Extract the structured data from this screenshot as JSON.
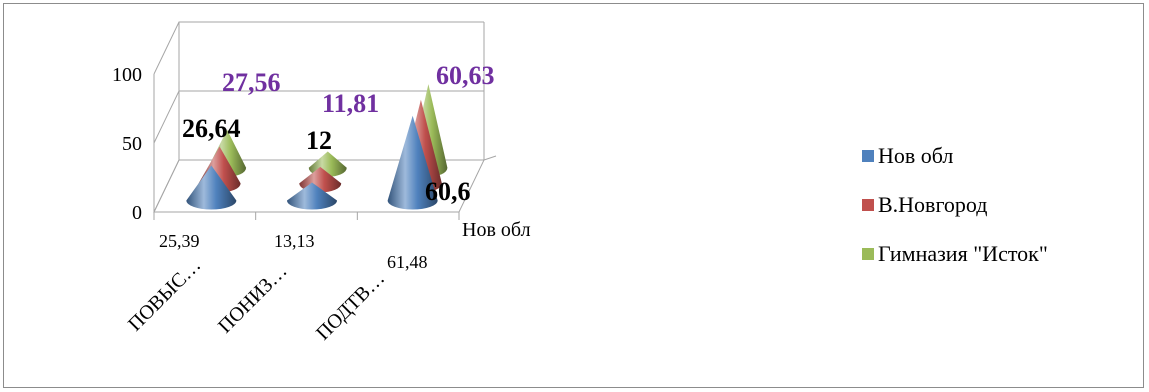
{
  "chart_data": {
    "type": "bar",
    "shape": "3d-cone",
    "categories": [
      "ПОВЫС…",
      "ПОНИЗ…",
      "ПОДТВ…"
    ],
    "depth_axis_label": "Нов обл",
    "y_ticks": [
      "0",
      "50",
      "100"
    ],
    "ylim": [
      0,
      100
    ],
    "series": [
      {
        "name": "Нов обл",
        "color": "#4f81bd",
        "values": [
          25.39,
          13.13,
          61.48
        ],
        "labels": [
          "25,39",
          "13,13",
          "61,48"
        ]
      },
      {
        "name": "В.Новгород",
        "color": "#c0504d",
        "values": [
          26.64,
          12,
          60.6
        ],
        "labels": [
          "26,64",
          "12",
          "60,6"
        ]
      },
      {
        "name": "Гимназия \"Исток\"",
        "color": "#9bbb59",
        "values": [
          27.56,
          11.81,
          60.63
        ],
        "labels": [
          "27,56",
          "11,81",
          "60,63"
        ]
      }
    ],
    "legend_position": "right",
    "grid": true
  }
}
